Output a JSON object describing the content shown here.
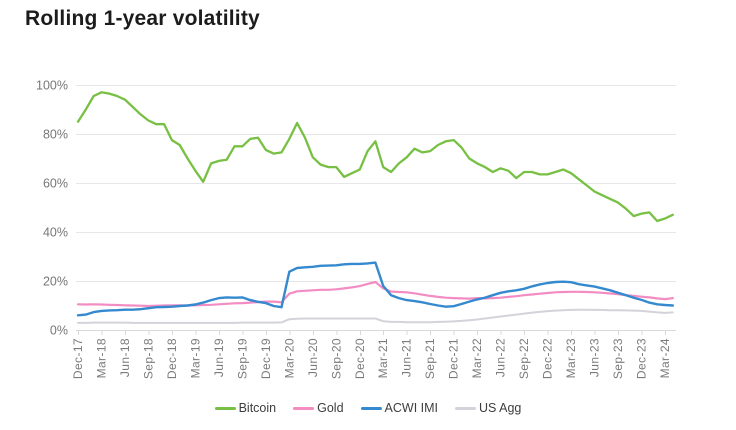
{
  "title": "Rolling 1-year volatility",
  "colors": {
    "bitcoin": "#77c043",
    "gold": "#f28cc3",
    "acwi_imi": "#3589ce",
    "us_agg": "#d4d2da",
    "gridline": "#e7e7e7",
    "axis_line": "#d9d9d9",
    "axis_text": "#7b7b7b",
    "title_text": "#1c1c1c"
  },
  "chart_data": {
    "type": "line",
    "title": "Rolling 1-year volatility",
    "xlabel": "",
    "ylabel": "",
    "ylim": [
      0,
      100
    ],
    "grid": "horizontal",
    "legend_position": "bottom",
    "y_tick_labels": [
      "0%",
      "20%",
      "40%",
      "60%",
      "80%",
      "100%"
    ],
    "y_tick_values": [
      0,
      20,
      40,
      60,
      80,
      100
    ],
    "x_tick_labels": [
      "Dec-17",
      "Mar-18",
      "Jun-18",
      "Sep-18",
      "Dec-18",
      "Mar-19",
      "Jun-19",
      "Sep-19",
      "Dec-19",
      "Mar-20",
      "Jun-20",
      "Sep-20",
      "Dec-20",
      "Mar-21",
      "Jun-21",
      "Sep-21",
      "Dec-21",
      "Mar-22",
      "Jun-22",
      "Sep-22",
      "Dec-22",
      "Mar-23",
      "Jun-23",
      "Sep-23",
      "Dec-23",
      "Mar-24"
    ],
    "x_resolution": "monthly, first point Dec-17, tick every 3rd month, values in percent",
    "series": [
      {
        "name": "Bitcoin",
        "color_key": "bitcoin",
        "width": 2.3,
        "values": [
          85,
          90,
          95.5,
          97,
          96.5,
          95.5,
          94,
          91,
          88,
          85.5,
          84,
          84,
          77.5,
          75.5,
          70,
          65,
          60.5,
          68,
          69,
          69.5,
          75,
          75,
          78,
          78.5,
          73.5,
          72,
          72.5,
          78,
          84.5,
          78.5,
          70.5,
          67.5,
          66.5,
          66.5,
          62.5,
          64,
          65.5,
          73,
          77,
          66.5,
          64.5,
          68,
          70.5,
          74,
          72.5,
          73,
          75.5,
          77,
          77.5,
          74.5,
          70,
          68,
          66.5,
          64.5,
          66,
          65,
          62,
          64.5,
          64.5,
          63.5,
          63.5,
          64.5,
          65.5,
          64,
          61.5,
          59,
          56.5,
          55,
          53.5,
          52,
          49.5,
          46.5,
          47.5,
          48,
          44.5,
          45.5,
          47
        ]
      },
      {
        "name": "Gold",
        "color_key": "gold",
        "width": 2.2,
        "values": [
          10.5,
          10.4,
          10.5,
          10.4,
          10.3,
          10.2,
          10.1,
          10,
          9.9,
          9.8,
          9.9,
          10,
          10.1,
          10.1,
          10,
          10.1,
          10.2,
          10.3,
          10.5,
          10.7,
          10.9,
          11,
          11.2,
          11.4,
          11.6,
          11.6,
          11.3,
          14.8,
          15.8,
          16,
          16.2,
          16.4,
          16.4,
          16.6,
          17,
          17.4,
          17.9,
          18.8,
          19.6,
          17,
          15.7,
          15.5,
          15.4,
          15,
          14.4,
          13.9,
          13.5,
          13.2,
          13,
          12.9,
          12.8,
          13,
          12.9,
          13,
          13.2,
          13.5,
          13.8,
          14.2,
          14.5,
          14.8,
          15.1,
          15.4,
          15.5,
          15.6,
          15.6,
          15.5,
          15.4,
          15.2,
          14.9,
          14.6,
          14.2,
          13.9,
          13.6,
          13.3,
          12.9,
          12.6,
          13
        ]
      },
      {
        "name": "ACWI IMI",
        "color_key": "acwi_imi",
        "width": 2.4,
        "values": [
          6,
          6.3,
          7.3,
          7.8,
          8,
          8.1,
          8.3,
          8.3,
          8.5,
          8.9,
          9.3,
          9.4,
          9.5,
          9.8,
          10,
          10.4,
          11.2,
          12.2,
          13,
          13.3,
          13.2,
          13.3,
          12.2,
          11.5,
          11,
          9.8,
          9.3,
          23.8,
          25.3,
          25.6,
          25.8,
          26.2,
          26.3,
          26.4,
          26.8,
          27,
          27,
          27.2,
          27.5,
          18,
          14.2,
          13,
          12.2,
          11.8,
          11.3,
          10.6,
          10,
          9.5,
          9.7,
          10.6,
          11.6,
          12.5,
          13.2,
          14.2,
          15.2,
          15.8,
          16.2,
          16.8,
          17.8,
          18.6,
          19.2,
          19.6,
          19.7,
          19.5,
          18.7,
          18.2,
          17.7,
          17,
          16.2,
          15.2,
          14.2,
          13.2,
          12.3,
          11.2,
          10.5,
          10.2,
          10
        ]
      },
      {
        "name": "US Agg",
        "color_key": "us_agg",
        "width": 2.0,
        "values": [
          2.9,
          2.9,
          3,
          3,
          3,
          3,
          3,
          2.9,
          2.9,
          2.9,
          2.9,
          2.9,
          2.9,
          2.9,
          2.9,
          2.9,
          2.9,
          2.9,
          2.9,
          2.9,
          2.9,
          3,
          3,
          3,
          3,
          3,
          3.1,
          4.4,
          4.6,
          4.7,
          4.7,
          4.7,
          4.7,
          4.7,
          4.7,
          4.7,
          4.7,
          4.7,
          4.7,
          3.6,
          3.3,
          3.3,
          3.2,
          3.2,
          3.2,
          3.2,
          3.3,
          3.4,
          3.5,
          3.7,
          4,
          4.3,
          4.7,
          5.1,
          5.5,
          5.9,
          6.3,
          6.7,
          7.1,
          7.4,
          7.7,
          7.9,
          8.1,
          8.2,
          8.3,
          8.3,
          8.2,
          8.2,
          8.1,
          8.1,
          8,
          7.9,
          7.8,
          7.5,
          7.2,
          7,
          7.2
        ]
      }
    ],
    "legend": [
      "Bitcoin",
      "Gold",
      "ACWI IMI",
      "US Agg"
    ]
  }
}
